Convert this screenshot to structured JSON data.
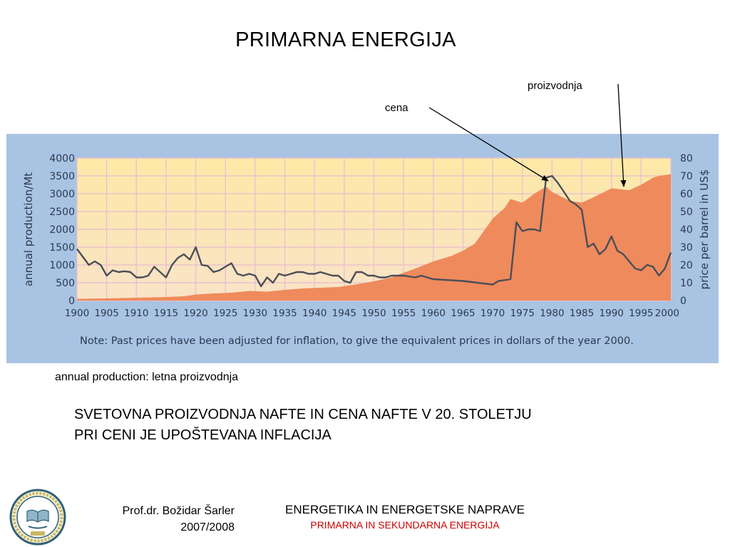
{
  "slide": {
    "title": "PRIMARNA ENERGIJA",
    "callout_proizvodnja": "proizvodnja",
    "callout_cena": "cena",
    "translation_note": "annual production: letna proizvodnja",
    "heading_line1": "SVETOVNA PROIZVODNJA NAFTE IN CENA NAFTE V 20. STOLETJU",
    "heading_line2": "PRI CENI JE UPOŠTEVANA INFLACIJA",
    "author": "Prof.dr. Božidar Šarler",
    "year": "2007/2008",
    "course_title": "ENERGETIKA IN ENERGETSKE NAPRAVE",
    "course_subtitle": "PRIMARNA IN SEKUNDARNA ENERGIJA"
  },
  "colors": {
    "panel_bg": "#a9c3e3",
    "plot_bg_top": "#fde9a6",
    "plot_bg_bottom": "#f9e3c8",
    "grid": "#eac2cc",
    "production_fill": "#ef8a5c",
    "price_line": "#4a4e58",
    "axis_text": "#2a3a4e",
    "course_subtitle": "#cc0000"
  },
  "chart_data": {
    "type": "area",
    "xlabel": "",
    "ylabel": "annual production/Mt",
    "y2label": "price per barrel in US$",
    "xlim": [
      1900,
      2000
    ],
    "ylim": [
      0,
      4000
    ],
    "y2lim": [
      0,
      80
    ],
    "x_ticks": [
      "1900",
      "1905",
      "1910",
      "1915",
      "1920",
      "1925",
      "1930",
      "1935",
      "1940",
      "1945",
      "1950",
      "1955",
      "1960",
      "1965",
      "1970",
      "1975",
      "1980",
      "1985",
      "1990",
      "1995",
      "2000"
    ],
    "y_ticks": [
      "0",
      "500",
      "1000",
      "1500",
      "2000",
      "2500",
      "3000",
      "3500",
      "4000"
    ],
    "y2_ticks": [
      "0",
      "10",
      "20",
      "30",
      "40",
      "50",
      "60",
      "70",
      "80"
    ],
    "note": "Note: Past prices have been adjusted for inflation, to give the equivalent prices in dollars of the year 2000.",
    "series": [
      {
        "name": "proizvodnja",
        "axis": "left",
        "x": [
          1900,
          1905,
          1910,
          1915,
          1918,
          1920,
          1923,
          1926,
          1929,
          1932,
          1935,
          1938,
          1941,
          1944,
          1946,
          1948,
          1950,
          1953,
          1955,
          1957,
          1960,
          1963,
          1965,
          1967,
          1970,
          1972,
          1973,
          1975,
          1977,
          1979,
          1980,
          1983,
          1985,
          1987,
          1990,
          1993,
          1995,
          1997,
          1998,
          2000
        ],
        "values": [
          50,
          60,
          80,
          100,
          120,
          170,
          200,
          220,
          270,
          250,
          300,
          340,
          360,
          380,
          430,
          480,
          540,
          650,
          780,
          900,
          1100,
          1250,
          1400,
          1600,
          2300,
          2600,
          2850,
          2750,
          3000,
          3200,
          3050,
          2800,
          2750,
          2900,
          3150,
          3100,
          3250,
          3450,
          3500,
          3550
        ]
      },
      {
        "name": "cena",
        "axis": "right",
        "x": [
          1900,
          1902,
          1903,
          1904,
          1905,
          1906,
          1907,
          1908,
          1909,
          1910,
          1911,
          1912,
          1913,
          1914,
          1915,
          1916,
          1917,
          1918,
          1919,
          1920,
          1921,
          1922,
          1923,
          1924,
          1925,
          1926,
          1927,
          1928,
          1929,
          1930,
          1931,
          1932,
          1933,
          1934,
          1935,
          1936,
          1937,
          1938,
          1939,
          1940,
          1941,
          1942,
          1943,
          1944,
          1945,
          1946,
          1947,
          1948,
          1949,
          1950,
          1951,
          1952,
          1953,
          1955,
          1957,
          1958,
          1960,
          1965,
          1970,
          1971,
          1972,
          1973,
          1974,
          1975,
          1976,
          1977,
          1978,
          1979,
          1980,
          1981,
          1982,
          1983,
          1984,
          1985,
          1986,
          1987,
          1988,
          1989,
          1990,
          1991,
          1992,
          1993,
          1994,
          1995,
          1996,
          1997,
          1998,
          1999,
          2000
        ],
        "values": [
          29,
          20,
          22,
          20,
          14,
          17,
          16,
          16.5,
          16,
          13,
          13,
          14,
          19,
          16,
          13,
          20,
          24,
          26,
          23,
          30,
          20,
          19.5,
          16,
          17,
          19,
          21,
          15,
          14,
          15,
          14,
          8,
          13,
          10,
          15,
          14,
          15,
          16,
          16,
          15,
          15,
          16,
          15,
          14,
          14,
          11,
          10,
          16,
          16,
          14,
          14,
          13,
          13,
          14,
          14,
          13,
          14,
          12,
          11,
          9,
          11,
          11.5,
          12,
          44,
          39,
          40,
          40,
          39,
          69,
          70,
          66,
          61,
          56,
          54,
          51,
          30,
          32,
          26,
          29,
          36,
          28,
          26,
          22,
          18,
          17,
          20,
          19,
          14,
          18,
          27
        ]
      }
    ]
  }
}
